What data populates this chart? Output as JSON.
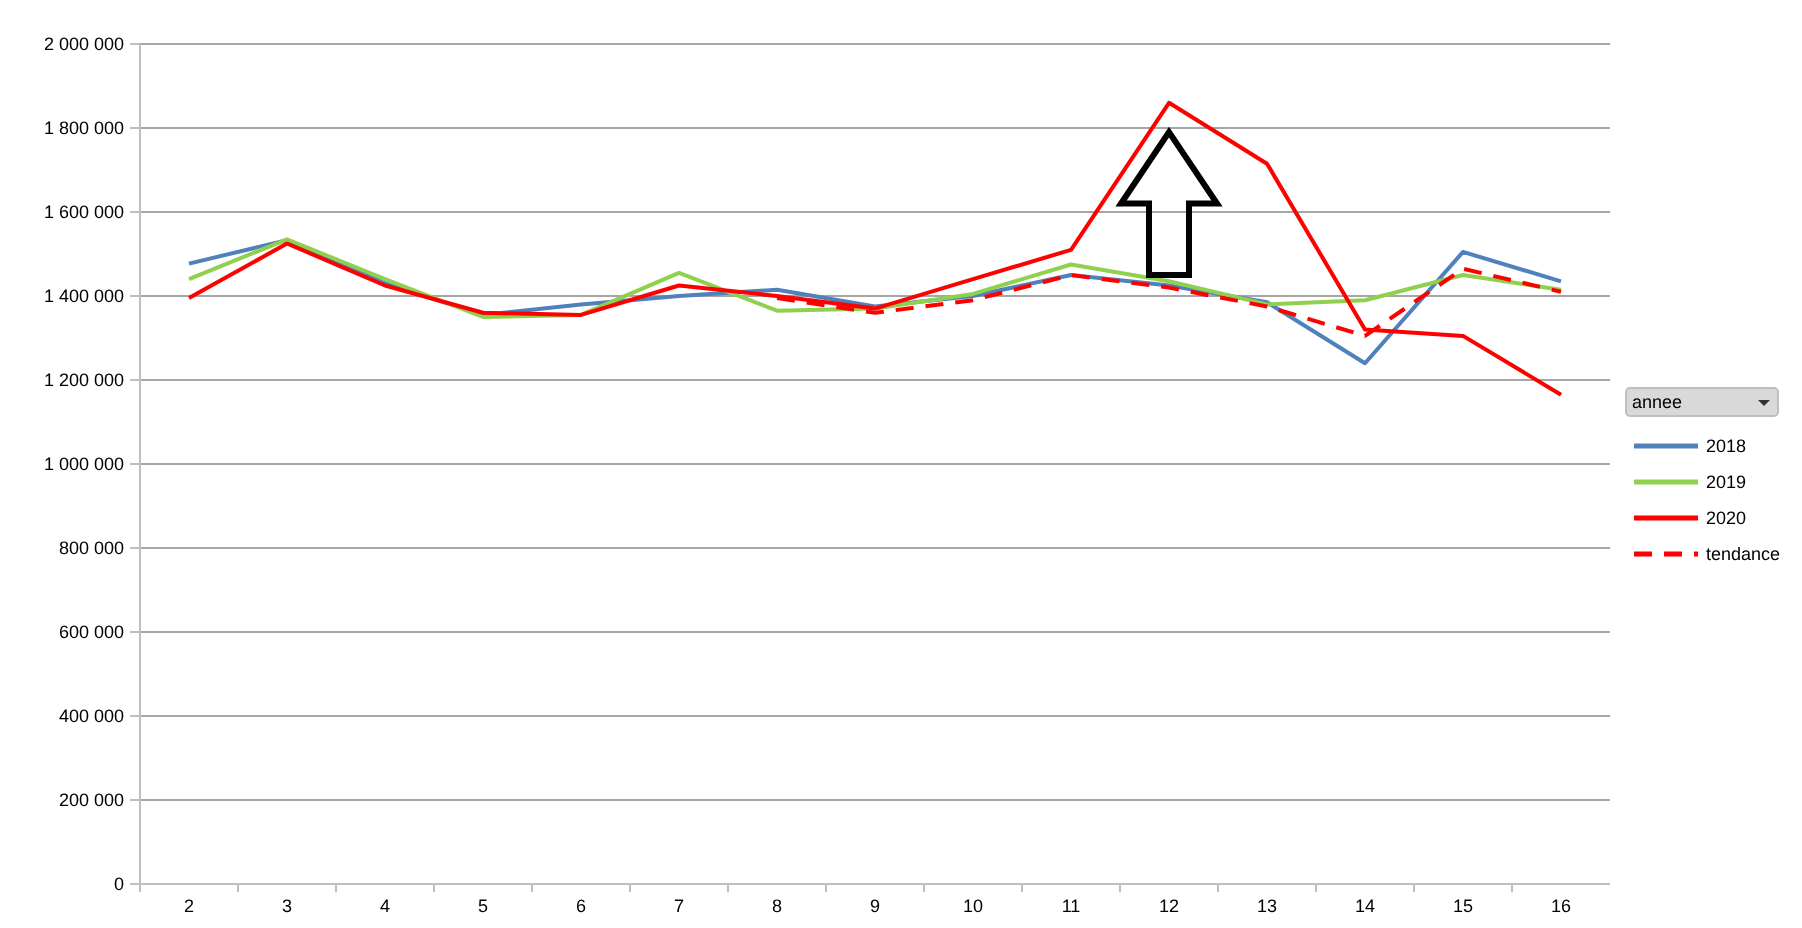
{
  "chart_data": {
    "type": "line",
    "legend_title": "annee",
    "legend": "right",
    "grid": "y",
    "line_style": "solid",
    "marker": "none",
    "categories": [
      "2",
      "3",
      "4",
      "5",
      "6",
      "7",
      "8",
      "9",
      "10",
      "11",
      "12",
      "13",
      "14",
      "15",
      "16"
    ],
    "ylim": [
      0,
      2000000
    ],
    "yticks": [
      0,
      {
        "value": 200000,
        "label": "200 000"
      },
      {
        "value": 400000,
        "label": "400 000"
      },
      {
        "value": 600000,
        "label": "600 000"
      },
      {
        "value": 800000,
        "label": "800 000"
      },
      {
        "value": 1000000,
        "label": "1 000 000"
      },
      {
        "value": 1200000,
        "label": "1 200 000"
      },
      {
        "value": 1400000,
        "label": "1 400 000"
      },
      {
        "value": 1600000,
        "label": "1 600 000"
      },
      {
        "value": 1800000,
        "label": "1 800 000"
      },
      {
        "value": 2000000,
        "label": "2 000 000"
      }
    ],
    "series": [
      {
        "name": "2018",
        "color": "#4f81bd",
        "values": [
          1477000,
          1533000,
          1430000,
          1355000,
          1380000,
          1400000,
          1415000,
          1375000,
          1400000,
          1450000,
          1425000,
          1385000,
          1240000,
          1505000,
          1435000
        ]
      },
      {
        "name": "2019",
        "color": "#8fd14f",
        "values": [
          1440000,
          1535000,
          1440000,
          1350000,
          1355000,
          1455000,
          1365000,
          1370000,
          1405000,
          1475000,
          1435000,
          1380000,
          1390000,
          1450000,
          1415000
        ]
      },
      {
        "name": "2020",
        "color": "#ff0000",
        "values": [
          1395000,
          1525000,
          1425000,
          1360000,
          1355000,
          1425000,
          1400000,
          1370000,
          1440000,
          1510000,
          1860000,
          1715000,
          1320000,
          1305000,
          1165000
        ]
      },
      {
        "name": "tendance",
        "color": "#ff0000",
        "line_style": "dashed",
        "values": [
          null,
          null,
          null,
          null,
          null,
          null,
          1395000,
          1360000,
          1390000,
          1450000,
          1420000,
          1375000,
          1305000,
          1465000,
          1410000
        ]
      }
    ]
  }
}
